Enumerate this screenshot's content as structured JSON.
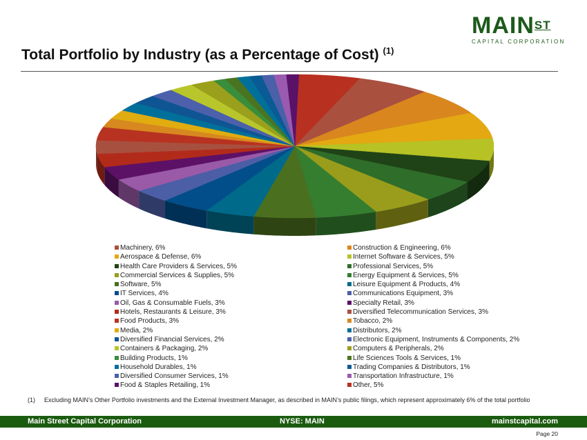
{
  "logo": {
    "main": "MAIN",
    "st": "ST",
    "sub": "CAPITAL CORPORATION"
  },
  "title": "Total Portfolio by Industry (as a Percentage of Cost)",
  "title_note": "(1)",
  "chart_data": {
    "type": "pie",
    "style": "3d",
    "title": "",
    "legend_placement": "bottom",
    "slices": [
      {
        "label": "Machinery, 6%",
        "name": "Machinery",
        "value": 6,
        "color": "#a9503f"
      },
      {
        "label": "Construction & Engineering, 6%",
        "name": "Construction & Engineering",
        "value": 6,
        "color": "#d9861e"
      },
      {
        "label": "Aerospace & Defense, 6%",
        "name": "Aerospace & Defense",
        "value": 6,
        "color": "#e3a812"
      },
      {
        "label": "Internet Software & Services, 5%",
        "name": "Internet Software & Services",
        "value": 5,
        "color": "#b7c224"
      },
      {
        "label": "Health Care Providers & Services, 5%",
        "name": "Health Care Providers & Services",
        "value": 5,
        "color": "#1f4316"
      },
      {
        "label": "Professional Services, 5%",
        "name": "Professional Services",
        "value": 5,
        "color": "#2f6d2a"
      },
      {
        "label": "Commercial Services & Supplies, 5%",
        "name": "Commercial Services & Supplies",
        "value": 5,
        "color": "#9a9d1b"
      },
      {
        "label": "Energy Equipment & Services, 5%",
        "name": "Energy Equipment & Services",
        "value": 5,
        "color": "#357d2f"
      },
      {
        "label": "Software, 5%",
        "name": "Software",
        "value": 5,
        "color": "#4a6f1e"
      },
      {
        "label": "Leisure Equipment & Products, 4%",
        "name": "Leisure Equipment & Products",
        "value": 4,
        "color": "#006a8a"
      },
      {
        "label": "IT Services, 4%",
        "name": "IT Services",
        "value": 4,
        "color": "#014e8a"
      },
      {
        "label": "Communications Equipment, 3%",
        "name": "Communications Equipment",
        "value": 3,
        "color": "#4b5ea6"
      },
      {
        "label": "Oil, Gas & Consumable Fuels, 3%",
        "name": "Oil, Gas & Consumable Fuels",
        "value": 3,
        "color": "#9a5aa8"
      },
      {
        "label": "Specialty Retail, 3%",
        "name": "Specialty Retail",
        "value": 3,
        "color": "#5d1166"
      },
      {
        "label": "Hotels, Restaurants & Leisure, 3%",
        "name": "Hotels, Restaurants & Leisure",
        "value": 3,
        "color": "#b22b1a"
      },
      {
        "label": "Diversified Telecommunication Services, 3%",
        "name": "Diversified Telecommunication Services",
        "value": 3,
        "color": "#a85040"
      },
      {
        "label": "Food Products, 3%",
        "name": "Food Products",
        "value": 3,
        "color": "#b73220"
      },
      {
        "label": "Tobacco, 2%",
        "name": "Tobacco",
        "value": 2,
        "color": "#d7881f"
      },
      {
        "label": "Media, 2%",
        "name": "Media",
        "value": 2,
        "color": "#e0ac10"
      },
      {
        "label": "Distributors, 2%",
        "name": "Distributors",
        "value": 2,
        "color": "#00709a"
      },
      {
        "label": "Diversified Financial Services, 2%",
        "name": "Diversified Financial Services",
        "value": 2,
        "color": "#0f5593"
      },
      {
        "label": "Electronic Equipment, Instruments & Components, 2%",
        "name": "Electronic Equipment, Instruments & Components",
        "value": 2,
        "color": "#4c60ab"
      },
      {
        "label": "Containers & Packaging, 2%",
        "name": "Containers & Packaging",
        "value": 2,
        "color": "#b9c62b"
      },
      {
        "label": "Computers & Peripherals, 2%",
        "name": "Computers & Peripherals",
        "value": 2,
        "color": "#9aa01c"
      },
      {
        "label": "Building Products, 1%",
        "name": "Building Products",
        "value": 1,
        "color": "#3a8d3a"
      },
      {
        "label": "Life Sciences Tools & Services, 1%",
        "name": "Life Sciences Tools & Services",
        "value": 1,
        "color": "#4b7420"
      },
      {
        "label": "Household Durables, 1%",
        "name": "Household Durables",
        "value": 1,
        "color": "#00709a"
      },
      {
        "label": "Trading Companies & Distributors, 1%",
        "name": "Trading Companies & Distributors",
        "value": 1,
        "color": "#0a5a95"
      },
      {
        "label": "Diversified Consumer Services, 1%",
        "name": "Diversified Consumer Services",
        "value": 1,
        "color": "#4a60a8"
      },
      {
        "label": "Transportation Infrastructure, 1%",
        "name": "Transportation Infrastructure",
        "value": 1,
        "color": "#9a5ab0"
      },
      {
        "label": "Food & Staples Retailing, 1%",
        "name": "Food & Staples Retailing",
        "value": 1,
        "color": "#5a1268"
      },
      {
        "label": "Other, 5%",
        "name": "Other",
        "value": 5,
        "color": "#b83020"
      }
    ]
  },
  "footnote": {
    "num": "(1)",
    "text": "Excluding MAIN’s Other Portfolio investments and the External Investment Manager, as described in MAIN’s public filings, which represent approximately 6% of the total portfolio"
  },
  "footer": {
    "left": "Main Street Capital Corporation",
    "center": "NYSE: MAIN",
    "right": "mainstcapital.com",
    "page": "Page  20"
  }
}
